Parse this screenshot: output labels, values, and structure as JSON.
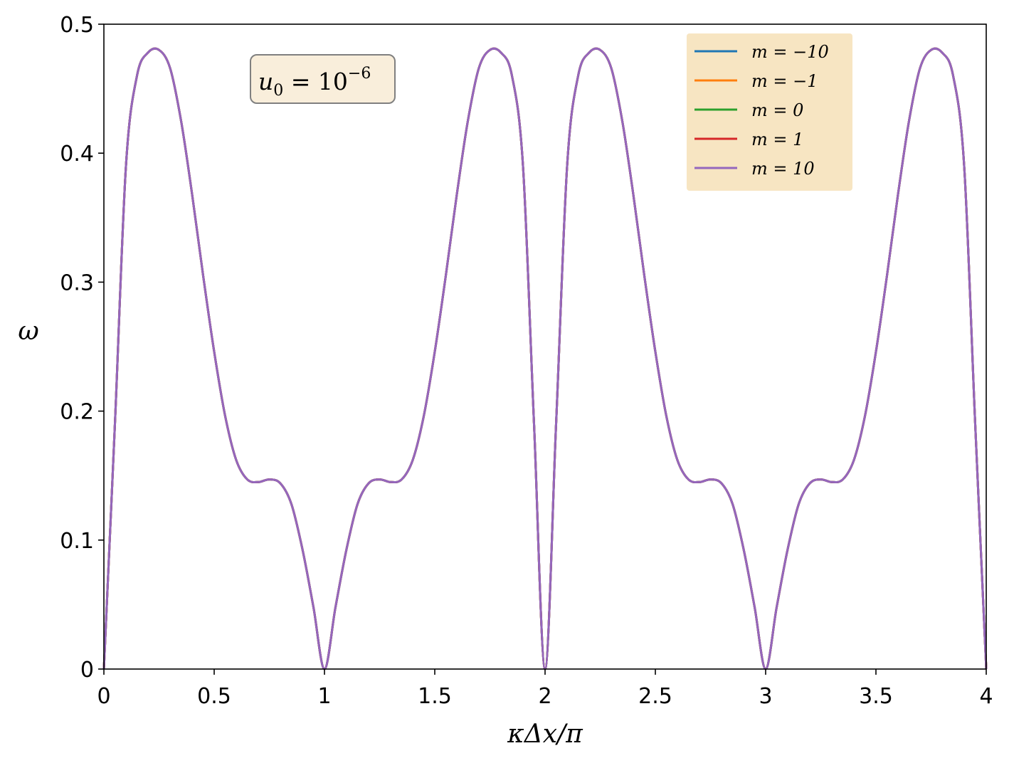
{
  "chart_data": {
    "type": "line",
    "xlabel": "κΔx/π",
    "ylabel": "ω",
    "xlim": [
      0,
      4
    ],
    "ylim": [
      0,
      0.5
    ],
    "x_ticks": [
      "0",
      "0.5",
      "1",
      "1.5",
      "2",
      "2.5",
      "3",
      "3.5",
      "4"
    ],
    "y_ticks": [
      "0",
      "0.1",
      "0.2",
      "0.3",
      "0.4",
      "0.5"
    ],
    "annotation": {
      "base": "u",
      "sub": "0",
      "eq": " = 10",
      "sup": "−6"
    },
    "legend_position": "top-right",
    "x": [
      0,
      0.05,
      0.1,
      0.15,
      0.2,
      0.25,
      0.3,
      0.35,
      0.4,
      0.45,
      0.5,
      0.55,
      0.6,
      0.65,
      0.7,
      0.75,
      0.8,
      0.85,
      0.9,
      0.95,
      1.0,
      1.05,
      1.1,
      1.15,
      1.2,
      1.25,
      1.3,
      1.35,
      1.4,
      1.45,
      1.5,
      1.55,
      1.6,
      1.65,
      1.7,
      1.75,
      1.8,
      1.85,
      1.9,
      1.95,
      2.0
    ],
    "y_half": [
      0,
      0.19,
      0.39,
      0.46,
      0.478,
      0.48,
      0.466,
      0.425,
      0.368,
      0.305,
      0.246,
      0.196,
      0.162,
      0.147,
      0.145,
      0.147,
      0.144,
      0.128,
      0.093,
      0.048,
      0,
      0.048,
      0.093,
      0.128,
      0.144,
      0.147,
      0.145,
      0.147,
      0.162,
      0.196,
      0.246,
      0.305,
      0.368,
      0.425,
      0.466,
      0.48,
      0.478,
      0.46,
      0.39,
      0.19,
      0
    ],
    "series": [
      {
        "name": "m = −10",
        "color": "#1f77b4"
      },
      {
        "name": "m = −1",
        "color": "#ff7f0e"
      },
      {
        "name": "m = 0",
        "color": "#2ca02c"
      },
      {
        "name": "m = 1",
        "color": "#d62728"
      },
      {
        "name": "m = 10",
        "color": "#9467bd"
      }
    ]
  }
}
